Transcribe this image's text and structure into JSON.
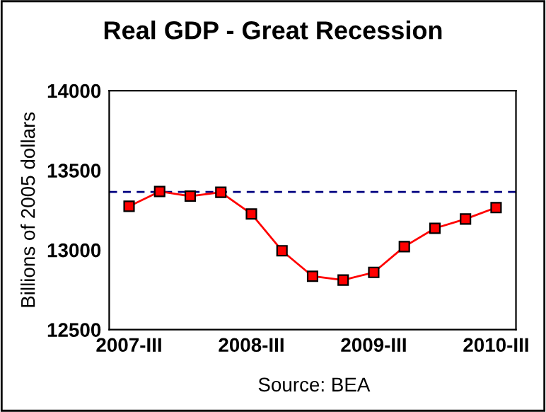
{
  "chart_data": {
    "type": "line",
    "title": "Real GDP - Great Recession",
    "ylabel": "Billions of 2005 dollars",
    "categories": [
      "2007-III",
      null,
      null,
      null,
      "2008-III",
      null,
      null,
      null,
      "2009-III",
      null,
      null,
      null,
      "2010-III"
    ],
    "series": [
      {
        "color": "#ff0000",
        "values": [
          13274,
          13367,
          13338,
          13362,
          13226,
          12995,
          12835,
          12811,
          12859,
          13021,
          13136,
          13194,
          13266
        ]
      }
    ],
    "ylim": [
      12500,
      14000
    ],
    "yticks": [
      12500,
      13000,
      13500,
      14000
    ],
    "ref_lines": [
      {
        "axis": "y",
        "value": 13364,
        "color": "#000080",
        "line_style": "dashed"
      }
    ],
    "annotations": [
      "Source: BEA"
    ],
    "marker": "square",
    "grid": false,
    "legend": false
  }
}
